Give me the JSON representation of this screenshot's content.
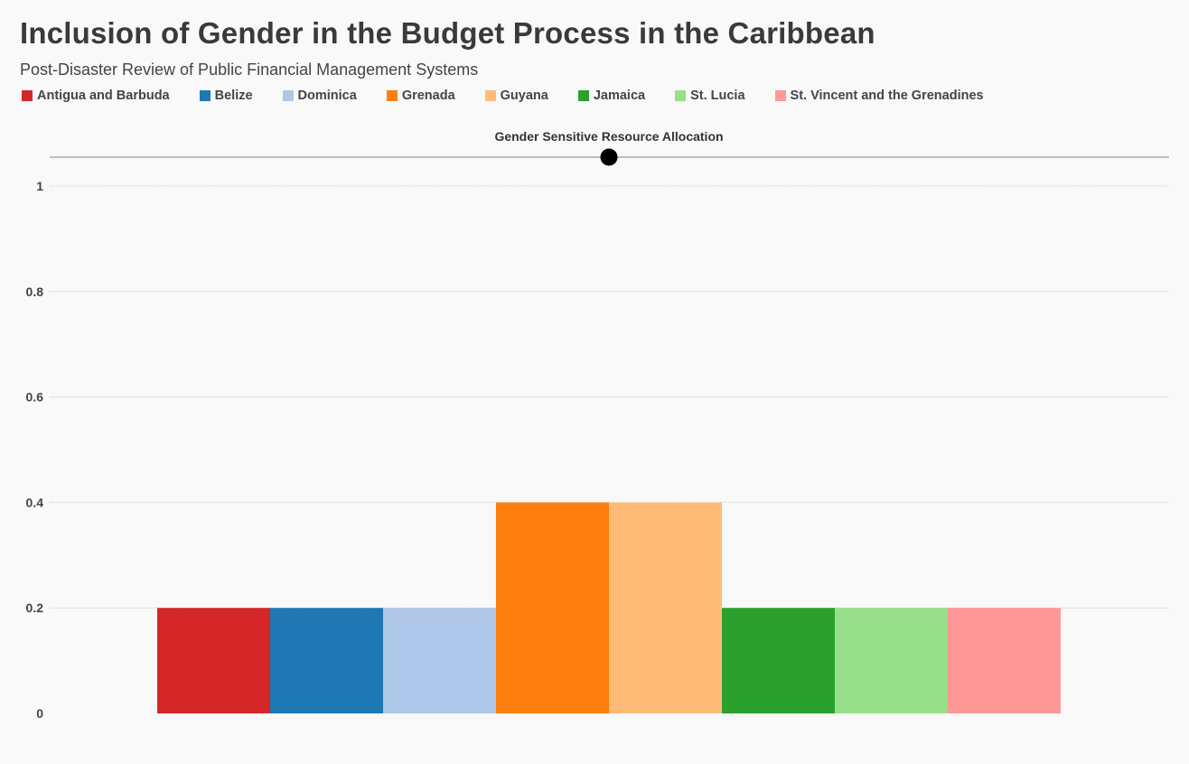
{
  "title": "Inclusion of Gender in the Budget Process in the Caribbean",
  "subtitle": "Post-Disaster Review of Public Financial Management Systems",
  "chart_data": {
    "type": "bar",
    "title": "Inclusion of Gender in the Budget Process in the Caribbean",
    "subtitle": "Post-Disaster Review of Public Financial Management Systems",
    "slider_label": "Gender Sensitive Resource Allocation",
    "categories": [
      "Antigua and Barbuda",
      "Belize",
      "Dominica",
      "Grenada",
      "Guyana",
      "Jamaica",
      "St. Lucia",
      "St. Vincent and the Grenadines"
    ],
    "values": [
      0.2,
      0.2,
      0.2,
      0.4,
      0.4,
      0.2,
      0.2,
      0.2
    ],
    "colors": [
      "#d62728",
      "#1f77b4",
      "#aec7e8",
      "#ff7f0e",
      "#ffbb78",
      "#2ca02c",
      "#98df8a",
      "#ff9896"
    ],
    "yticks": [
      "0",
      "0.2",
      "0.4",
      "0.6",
      "0.8",
      "1"
    ],
    "ylim": [
      0,
      1
    ],
    "grid": true,
    "legend_position": "top-left"
  }
}
